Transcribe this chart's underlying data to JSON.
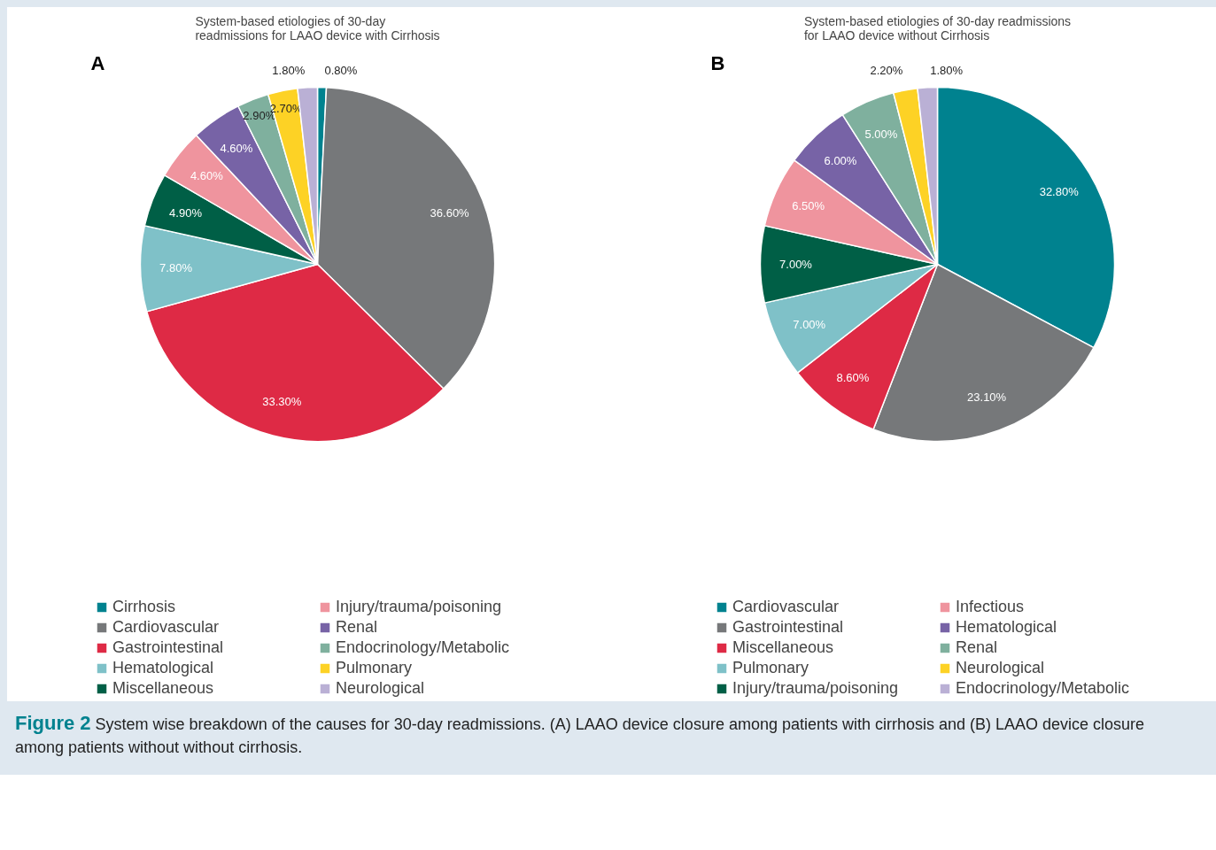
{
  "chart_data": [
    {
      "type": "pie",
      "title": "System-based etiologies of 30-day readmissions for LAAO device with Cirrhosis",
      "annotations": [
        "A"
      ],
      "legend": "bottom",
      "categories": [
        "Cirrhosis",
        "Cardiovascular",
        "Gastrointestinal",
        "Hematological",
        "Miscellaneous",
        "Injury/trauma/poisoning",
        "Renal",
        "Endocrinology/Metabolic",
        "Pulmonary",
        "Neurological"
      ],
      "values": [
        0.8,
        36.6,
        33.3,
        7.8,
        4.9,
        4.6,
        4.6,
        2.9,
        2.7,
        1.8
      ],
      "value_labels": [
        "0.80%",
        "36.60%",
        "33.30%",
        "7.80%",
        "4.90%",
        "4.60%",
        "4.60%",
        "2.90%",
        "2.70%",
        "1.80%"
      ],
      "colors": [
        "#00828f",
        "#76787a",
        "#de2a45",
        "#7fc1c8",
        "#005f46",
        "#ef949e",
        "#7763a6",
        "#7fb09e",
        "#fdd225",
        "#bab0d5"
      ]
    },
    {
      "type": "pie",
      "title": "System-based etiologies of 30-day readmissions for LAAO device without Cirrhosis",
      "annotations": [
        "B",
        "Figure 2",
        "System wise breakdown of the causes for 30-day readmissions. (A) LAAO device closure among patients with cirrhosis and (B) LAAO device closure among patients without without cirrhosis."
      ],
      "legend": "bottom",
      "categories": [
        "Cardiovascular",
        "Gastrointestinal",
        "Miscellaneous",
        "Pulmonary",
        "Injury/trauma/poisoning",
        "Infectious",
        "Hematological",
        "Renal",
        "Neurological",
        "Endocrinology/Metabolic"
      ],
      "values": [
        32.8,
        23.1,
        8.6,
        7.0,
        7.0,
        6.5,
        6.0,
        5.0,
        2.2,
        1.8
      ],
      "value_labels": [
        "32.80%",
        "23.10%",
        "8.60%",
        "7.00%",
        "7.00%",
        "6.50%",
        "6.00%",
        "5.00%",
        "2.20%",
        "1.80%"
      ],
      "colors": [
        "#00828f",
        "#76787a",
        "#de2a45",
        "#7fc1c8",
        "#005f46",
        "#ef949e",
        "#7763a6",
        "#7fb09e",
        "#fdd225",
        "#bab0d5"
      ]
    }
  ]
}
